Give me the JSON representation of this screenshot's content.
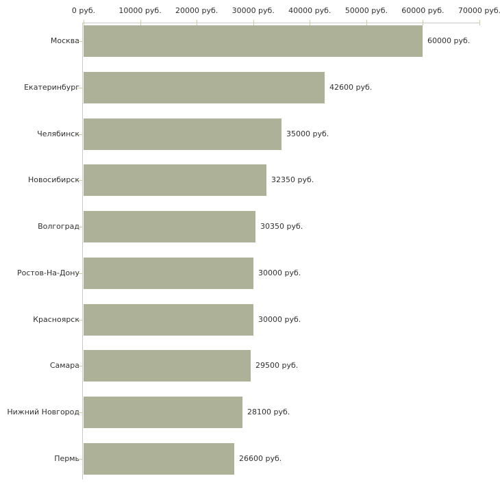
{
  "chart_data": {
    "type": "bar",
    "orientation": "horizontal",
    "title": "",
    "categories": [
      "Москва",
      "Екатеринбург",
      "Челябинск",
      "Новосибирск",
      "Волгоград",
      "Ростов-На-Дону",
      "Красноярск",
      "Самара",
      "Нижний Новгород",
      "Пермь"
    ],
    "values": [
      60000,
      42600,
      35000,
      32350,
      30350,
      30000,
      30000,
      29500,
      28100,
      26600
    ],
    "value_labels": [
      "60000 руб.",
      "42600 руб.",
      "35000 руб.",
      "32350 руб.",
      "30350 руб.",
      "30000 руб.",
      "30000 руб.",
      "29500 руб.",
      "28100 руб.",
      "26600 руб."
    ],
    "x_axis": {
      "position": "top",
      "xlim": [
        0,
        70000
      ],
      "ticks": [
        0,
        10000,
        20000,
        30000,
        40000,
        50000,
        60000,
        70000
      ],
      "tick_labels": [
        "0 руб.",
        "10000 руб.",
        "20000 руб.",
        "30000 руб.",
        "40000 руб.",
        "50000 руб.",
        "60000 руб.",
        "70000 руб."
      ]
    },
    "xlabel": "",
    "ylabel": "",
    "grid": false,
    "legend": false,
    "colors": {
      "bar": "#adb197",
      "axis_line": "#c8c8c8",
      "tick_mark": "#cccc9e",
      "text": "#303030",
      "background": "#ffffff"
    }
  }
}
